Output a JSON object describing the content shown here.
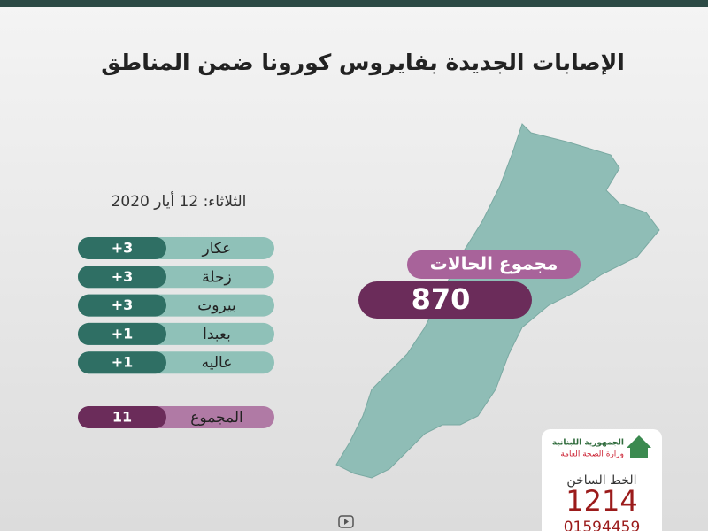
{
  "header": {
    "title": "الإصابات الجديدة بفايروس كورونا ضمن المناطق"
  },
  "date": "الثلاثاء: 12 أيار 2020",
  "table": {
    "rows": [
      [
        "عكار",
        "+3"
      ],
      [
        "زحلة",
        "+3"
      ],
      [
        "بيروت",
        "+3"
      ],
      [
        "بعبدا",
        "+1"
      ],
      [
        "عاليه",
        "+1"
      ]
    ],
    "total": [
      "المجموع",
      "11"
    ]
  },
  "cases": {
    "label": "مجموع الحالات",
    "value": "870"
  },
  "ministry": {
    "line1": "الجمهورية اللبنانية",
    "line2": "وزارة الصحة العامة"
  },
  "hotline": {
    "label": "الخط الساخن",
    "number": "1214",
    "phone": "01594459"
  }
}
